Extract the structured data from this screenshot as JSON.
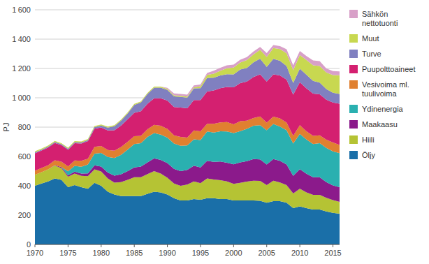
{
  "chart_data": {
    "type": "area",
    "stacked": true,
    "grid": true,
    "legend": "right",
    "ylabel": "PJ",
    "x": [
      1970,
      1971,
      1972,
      1973,
      1974,
      1975,
      1976,
      1977,
      1978,
      1979,
      1980,
      1981,
      1982,
      1983,
      1984,
      1985,
      1986,
      1987,
      1988,
      1989,
      1990,
      1991,
      1992,
      1993,
      1994,
      1995,
      1996,
      1997,
      1998,
      1999,
      2000,
      2001,
      2002,
      2003,
      2004,
      2005,
      2006,
      2007,
      2008,
      2009,
      2010,
      2011,
      2012,
      2013,
      2014,
      2015,
      2016
    ],
    "xlim": [
      1970,
      2016
    ],
    "xticks": [
      1970,
      1975,
      1980,
      1985,
      1990,
      1995,
      2000,
      2005,
      2010,
      2015
    ],
    "ylim": [
      0,
      1600
    ],
    "yticks": [
      0,
      200,
      400,
      600,
      800,
      {
        "value": 1000,
        "label": "1 000"
      },
      {
        "value": 1200,
        "label": "1 200"
      },
      {
        "value": 1400,
        "label": "1 400"
      },
      {
        "value": 1600,
        "label": "1 600"
      }
    ],
    "series": [
      {
        "name": "Öljy",
        "color": "#1a6fa8",
        "values": [
          400,
          415,
          430,
          450,
          440,
          390,
          405,
          390,
          380,
          420,
          400,
          360,
          340,
          330,
          330,
          330,
          330,
          345,
          360,
          355,
          340,
          315,
          300,
          300,
          310,
          305,
          315,
          315,
          310,
          310,
          300,
          300,
          300,
          300,
          298,
          285,
          295,
          295,
          285,
          248,
          260,
          248,
          238,
          238,
          225,
          215,
          210
        ]
      },
      {
        "name": "Hiili",
        "color": "#b5c334",
        "values": [
          75,
          78,
          82,
          88,
          80,
          72,
          78,
          78,
          85,
          92,
          98,
          90,
          82,
          95,
          110,
          128,
          128,
          135,
          140,
          128,
          115,
          100,
          100,
          108,
          120,
          113,
          135,
          128,
          128,
          120,
          113,
          120,
          128,
          135,
          135,
          120,
          140,
          128,
          120,
          100,
          120,
          107,
          100,
          100,
          93,
          87,
          80
        ]
      },
      {
        "name": "Maakaasu",
        "color": "#8b1a8b",
        "values": [
          0,
          0,
          0,
          3,
          7,
          10,
          13,
          15,
          20,
          27,
          33,
          40,
          47,
          53,
          60,
          67,
          73,
          80,
          87,
          93,
          100,
          100,
          100,
          100,
          107,
          107,
          120,
          120,
          127,
          127,
          133,
          140,
          140,
          147,
          147,
          140,
          147,
          147,
          140,
          120,
          133,
          127,
          120,
          120,
          107,
          100,
          100
        ]
      },
      {
        "name": "Ydinenergia",
        "color": "#2ab0b0",
        "values": [
          0,
          0,
          0,
          0,
          0,
          27,
          40,
          47,
          60,
          80,
          93,
          107,
          120,
          133,
          147,
          160,
          160,
          173,
          173,
          173,
          173,
          173,
          173,
          167,
          180,
          187,
          200,
          200,
          207,
          213,
          213,
          213,
          220,
          227,
          233,
          233,
          240,
          233,
          233,
          220,
          240,
          233,
          227,
          233,
          233,
          233,
          233
        ]
      },
      {
        "name": "Vesivoima ml.\ntuulivoima",
        "color": "#e08030",
        "values": [
          27,
          29,
          29,
          33,
          37,
          33,
          37,
          40,
          40,
          47,
          47,
          47,
          50,
          53,
          53,
          53,
          50,
          53,
          56,
          60,
          60,
          56,
          60,
          53,
          60,
          60,
          53,
          60,
          60,
          64,
          60,
          67,
          56,
          53,
          60,
          53,
          50,
          56,
          53,
          53,
          60,
          56,
          56,
          53,
          56,
          60,
          56
        ]
      },
      {
        "name": "Puupolttoaineet",
        "color": "#d42070",
        "values": [
          120,
          118,
          120,
          118,
          113,
          113,
          118,
          118,
          120,
          123,
          127,
          133,
          140,
          147,
          153,
          160,
          167,
          173,
          180,
          187,
          193,
          193,
          200,
          200,
          207,
          213,
          220,
          227,
          233,
          240,
          253,
          260,
          267,
          280,
          287,
          280,
          287,
          293,
          293,
          280,
          293,
          293,
          287,
          280,
          273,
          273,
          280
        ]
      },
      {
        "name": "Turve",
        "color": "#8080c0",
        "values": [
          7,
          7,
          7,
          7,
          7,
          7,
          7,
          7,
          7,
          11,
          13,
          20,
          27,
          33,
          40,
          53,
          60,
          67,
          73,
          73,
          73,
          73,
          73,
          73,
          80,
          80,
          93,
          87,
          87,
          87,
          87,
          93,
          93,
          100,
          107,
          100,
          107,
          100,
          93,
          80,
          93,
          93,
          87,
          80,
          73,
          67,
          67
        ]
      },
      {
        "name": "Muut",
        "color": "#c8d850",
        "values": [
          7,
          7,
          7,
          7,
          7,
          7,
          7,
          7,
          7,
          7,
          7,
          7,
          7,
          7,
          7,
          7,
          7,
          7,
          7,
          7,
          7,
          7,
          7,
          7,
          7,
          13,
          20,
          27,
          33,
          40,
          47,
          47,
          53,
          53,
          60,
          67,
          73,
          80,
          87,
          87,
          93,
          100,
          107,
          113,
          113,
          120,
          127
        ]
      },
      {
        "name": "Sähkön\nnettotuonti",
        "color": "#d8a0c8",
        "values": [
          0,
          0,
          0,
          0,
          0,
          0,
          0,
          0,
          0,
          0,
          0,
          0,
          0,
          0,
          0,
          0,
          0,
          0,
          0,
          0,
          7,
          13,
          13,
          13,
          13,
          13,
          13,
          20,
          20,
          20,
          20,
          20,
          20,
          20,
          20,
          27,
          20,
          20,
          27,
          33,
          27,
          27,
          33,
          33,
          27,
          27,
          27
        ]
      }
    ]
  }
}
